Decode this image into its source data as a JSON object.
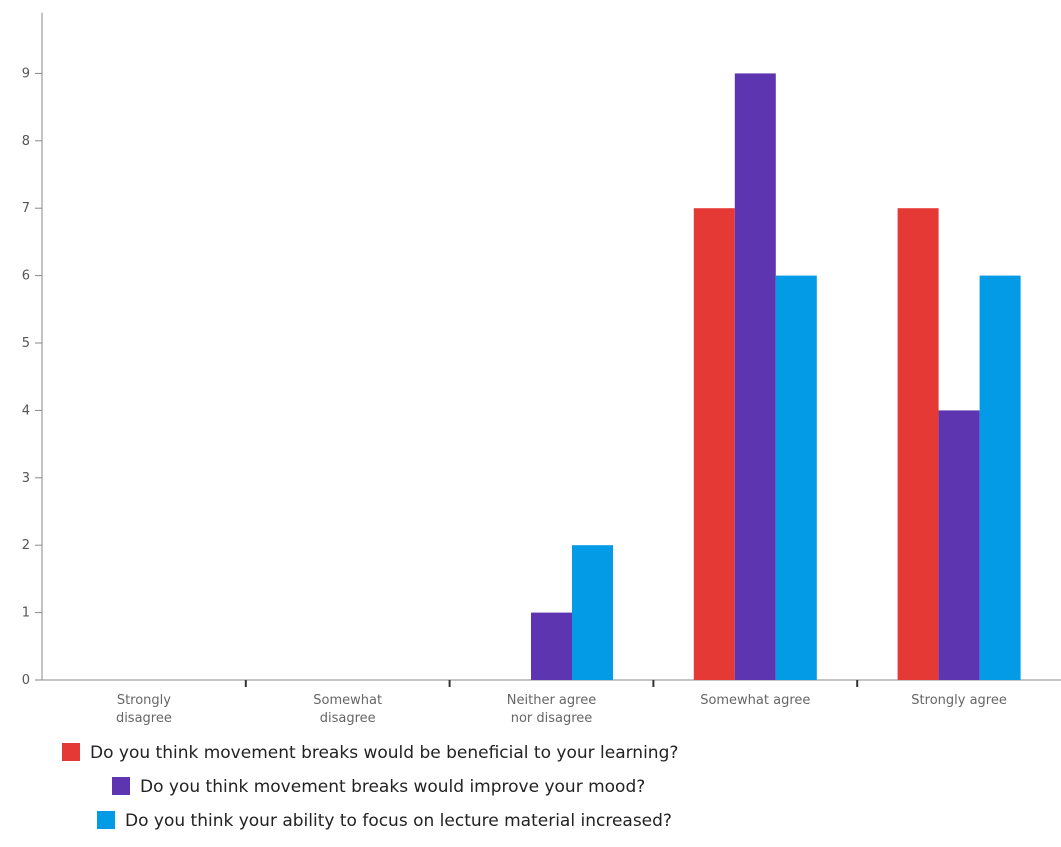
{
  "chart_data": {
    "type": "bar",
    "categories": [
      [
        "Strongly",
        "disagree"
      ],
      [
        "Somewhat",
        "disagree"
      ],
      [
        "Neither agree",
        "nor disagree"
      ],
      [
        "Somewhat agree"
      ],
      [
        "Strongly agree"
      ]
    ],
    "series": [
      {
        "name": "Do you think movement breaks would be beneficial to your learning?",
        "color": "#e53935",
        "values": [
          0,
          0,
          0,
          7,
          7
        ]
      },
      {
        "name": "Do you think movement breaks would improve your mood?",
        "color": "#5e35b1",
        "values": [
          0,
          0,
          1,
          9,
          4
        ]
      },
      {
        "name": "Do you think your ability to focus on lecture material increased?",
        "color": "#039be5",
        "values": [
          0,
          0,
          2,
          6,
          6
        ]
      }
    ],
    "ylim": [
      0,
      9.9
    ],
    "yticks": [
      0,
      1,
      2,
      3,
      4,
      5,
      6,
      7,
      8,
      9
    ],
    "legend_position": "bottom",
    "grid": false
  }
}
